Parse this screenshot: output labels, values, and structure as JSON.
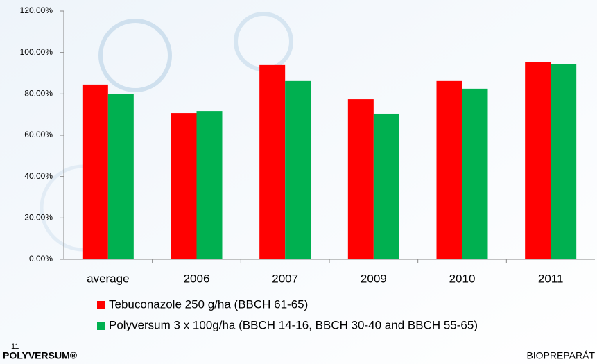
{
  "chart_data": {
    "type": "bar",
    "categories": [
      "average",
      "2006",
      "2007",
      "2009",
      "2010",
      "2011"
    ],
    "series": [
      {
        "name": "Tebuconazole 250 g/ha (BBCH 61-65)",
        "color": "#ff0000",
        "values": [
          84.5,
          70.7,
          93.9,
          77.4,
          86.2,
          95.5
        ]
      },
      {
        "name": "Polyversum 3 x 100g/ha (BBCH 14-16, BBCH 30-40 and BBCH 55-65)",
        "color": "#00b050",
        "values": [
          80.1,
          71.7,
          86.2,
          70.4,
          82.5,
          94.2
        ]
      }
    ],
    "ylim": [
      0,
      120
    ],
    "yticks": [
      {
        "value": 0,
        "label": "0.00%"
      },
      {
        "value": 20,
        "label": "20.00%"
      },
      {
        "value": 40,
        "label": "40.00%"
      },
      {
        "value": 60,
        "label": "60.00%"
      },
      {
        "value": 80,
        "label": "80.00%"
      },
      {
        "value": 100,
        "label": "100.00%"
      },
      {
        "value": 120,
        "label": "120.00%"
      }
    ],
    "grid": false
  },
  "footer": {
    "page": "11",
    "left_logo": "POLYVERSUM®",
    "right_logo": "BIOPREPARÁT"
  }
}
